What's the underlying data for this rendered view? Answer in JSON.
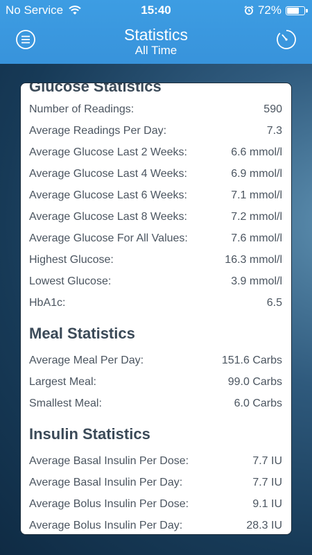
{
  "status_bar": {
    "carrier": "No Service",
    "time": "15:40",
    "battery": "72%",
    "battery_level": 0.72
  },
  "header": {
    "title": "Statistics",
    "subtitle": "All Time",
    "menu_icon": "hamburger-menu-icon",
    "timer_icon": "stopwatch-icon"
  },
  "sections": {
    "glucose": {
      "title": "Glucose Statistics",
      "rows": [
        {
          "label": "Number of Readings:",
          "value": "590"
        },
        {
          "label": "Average Readings Per Day:",
          "value": "7.3"
        },
        {
          "label": "Average Glucose Last 2 Weeks:",
          "value": "6.6 mmol/l"
        },
        {
          "label": "Average Glucose Last 4 Weeks:",
          "value": "6.9 mmol/l"
        },
        {
          "label": "Average Glucose Last 6 Weeks:",
          "value": "7.1 mmol/l"
        },
        {
          "label": "Average Glucose Last 8 Weeks:",
          "value": "7.2 mmol/l"
        },
        {
          "label": "Average Glucose For All Values:",
          "value": "7.6 mmol/l"
        },
        {
          "label": "Highest Glucose:",
          "value": "16.3 mmol/l"
        },
        {
          "label": "Lowest Glucose:",
          "value": "3.9 mmol/l"
        },
        {
          "label": "HbA1c:",
          "value": "6.5"
        }
      ]
    },
    "meal": {
      "title": "Meal Statistics",
      "rows": [
        {
          "label": "Average Meal Per Day:",
          "value": "151.6 Carbs"
        },
        {
          "label": "Largest Meal:",
          "value": "99.0 Carbs"
        },
        {
          "label": "Smallest Meal:",
          "value": "6.0 Carbs"
        }
      ]
    },
    "insulin": {
      "title": "Insulin Statistics",
      "rows": [
        {
          "label": "Average Basal Insulin Per Dose:",
          "value": "7.7 IU"
        },
        {
          "label": "Average Basal Insulin Per Day:",
          "value": "7.7 IU"
        },
        {
          "label": "Average Bolus Insulin Per Dose:",
          "value": "9.1 IU"
        },
        {
          "label": "Average Bolus Insulin Per Day:",
          "value": "28.3 IU"
        }
      ]
    }
  },
  "colors": {
    "header": "#3b9be2",
    "background": "#1f4463",
    "text": "#4b5560",
    "heading": "#3b4a58"
  }
}
